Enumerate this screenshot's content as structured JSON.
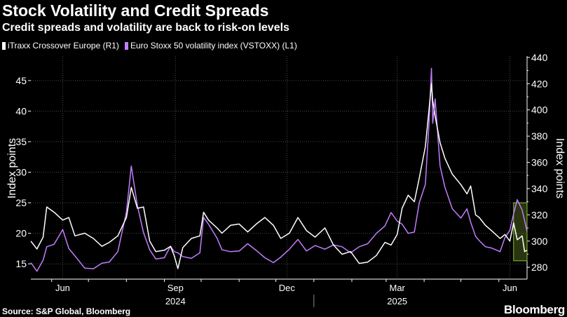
{
  "header": {
    "title": "Stock Volatility and Credit Spreads",
    "subtitle": "Credit spreads and volatility are back to risk-on levels"
  },
  "footer": {
    "source": "Source: S&P Global, Bloomberg",
    "brand": "Bloomberg"
  },
  "colors": {
    "itraxx": "#ffffff",
    "vstoxx": "#c17dfb",
    "highlight": "#8fbf3a"
  },
  "chart_data": {
    "type": "line",
    "legend_position": "top-left",
    "grid": true,
    "x_ticks": [
      "Jun",
      "Sep",
      "Dec",
      "Mar",
      "Jun"
    ],
    "x_years": [
      "2024",
      "2025"
    ],
    "ylabel_left": "Index points",
    "ylabel_right": "Index points",
    "ylim_left": [
      12.5,
      49
    ],
    "ylim_right": [
      271,
      441
    ],
    "yticks_left": [
      15,
      20,
      25,
      30,
      35,
      40,
      45
    ],
    "yticks_right": [
      280,
      300,
      320,
      340,
      360,
      380,
      400,
      420,
      440
    ],
    "x_range": [
      "2024-05-15",
      "2025-06-24"
    ],
    "highlight_range": [
      "2025-06-13",
      "2025-06-24"
    ],
    "series": [
      {
        "name": "iTraxx Crossover Europe (R1)",
        "axis": "right",
        "points": [
          [
            "2024-05-15",
            300
          ],
          [
            "2024-05-20",
            294
          ],
          [
            "2024-05-25",
            303
          ],
          [
            "2024-05-28",
            326
          ],
          [
            "2024-06-03",
            322
          ],
          [
            "2024-06-10",
            316
          ],
          [
            "2024-06-15",
            318
          ],
          [
            "2024-06-20",
            304
          ],
          [
            "2024-06-28",
            306
          ],
          [
            "2024-07-05",
            302
          ],
          [
            "2024-07-12",
            296
          ],
          [
            "2024-07-18",
            299
          ],
          [
            "2024-07-25",
            304
          ],
          [
            "2024-08-01",
            318
          ],
          [
            "2024-08-05",
            341
          ],
          [
            "2024-08-10",
            325
          ],
          [
            "2024-08-15",
            326
          ],
          [
            "2024-08-20",
            300
          ],
          [
            "2024-08-25",
            292
          ],
          [
            "2024-09-01",
            293
          ],
          [
            "2024-09-06",
            296
          ],
          [
            "2024-09-09",
            289
          ],
          [
            "2024-09-12",
            279
          ],
          [
            "2024-09-16",
            295
          ],
          [
            "2024-09-23",
            302
          ],
          [
            "2024-09-30",
            304
          ],
          [
            "2024-10-03",
            322
          ],
          [
            "2024-10-07",
            316
          ],
          [
            "2024-10-14",
            310
          ],
          [
            "2024-10-18",
            306
          ],
          [
            "2024-10-25",
            312
          ],
          [
            "2024-11-01",
            313
          ],
          [
            "2024-11-08",
            307
          ],
          [
            "2024-11-15",
            313
          ],
          [
            "2024-11-22",
            318
          ],
          [
            "2024-11-29",
            312
          ],
          [
            "2024-12-05",
            302
          ],
          [
            "2024-12-12",
            306
          ],
          [
            "2024-12-19",
            318
          ],
          [
            "2024-12-26",
            308
          ],
          [
            "2025-01-02",
            303
          ],
          [
            "2025-01-10",
            310
          ],
          [
            "2025-01-17",
            297
          ],
          [
            "2025-01-24",
            290
          ],
          [
            "2025-01-31",
            292
          ],
          [
            "2025-02-07",
            283
          ],
          [
            "2025-02-14",
            284
          ],
          [
            "2025-02-21",
            289
          ],
          [
            "2025-02-28",
            299
          ],
          [
            "2025-03-05",
            297
          ],
          [
            "2025-03-10",
            305
          ],
          [
            "2025-03-14",
            325
          ],
          [
            "2025-03-19",
            335
          ],
          [
            "2025-03-24",
            330
          ],
          [
            "2025-03-28",
            348
          ],
          [
            "2025-04-02",
            372
          ],
          [
            "2025-04-05",
            400
          ],
          [
            "2025-04-07",
            420
          ],
          [
            "2025-04-08",
            407
          ],
          [
            "2025-04-10",
            395
          ],
          [
            "2025-04-14",
            375
          ],
          [
            "2025-04-18",
            363
          ],
          [
            "2025-04-24",
            351
          ],
          [
            "2025-05-01",
            343
          ],
          [
            "2025-05-06",
            336
          ],
          [
            "2025-05-09",
            342
          ],
          [
            "2025-05-13",
            320
          ],
          [
            "2025-05-16",
            318
          ],
          [
            "2025-05-21",
            312
          ],
          [
            "2025-05-26",
            308
          ],
          [
            "2025-06-02",
            302
          ],
          [
            "2025-06-06",
            305
          ],
          [
            "2025-06-10",
            300
          ],
          [
            "2025-06-13",
            314
          ],
          [
            "2025-06-16",
            301
          ],
          [
            "2025-06-20",
            304
          ],
          [
            "2025-06-22",
            292
          ],
          [
            "2025-06-24",
            293
          ]
        ]
      },
      {
        "name": "Euro Stoxx 50 volatility index (VSTOXX) (L1)",
        "axis": "left",
        "points": [
          [
            "2024-05-15",
            15.2
          ],
          [
            "2024-05-20",
            13.8
          ],
          [
            "2024-05-25",
            15.6
          ],
          [
            "2024-05-28",
            17.8
          ],
          [
            "2024-06-03",
            18.2
          ],
          [
            "2024-06-10",
            20.6
          ],
          [
            "2024-06-15",
            17.5
          ],
          [
            "2024-06-20",
            16.3
          ],
          [
            "2024-06-28",
            14.3
          ],
          [
            "2024-07-05",
            14.2
          ],
          [
            "2024-07-12",
            15.1
          ],
          [
            "2024-07-18",
            15.3
          ],
          [
            "2024-07-25",
            17.0
          ],
          [
            "2024-08-01",
            23.5
          ],
          [
            "2024-08-05",
            31.0
          ],
          [
            "2024-08-10",
            24.5
          ],
          [
            "2024-08-15",
            20.1
          ],
          [
            "2024-08-20",
            17.3
          ],
          [
            "2024-08-25",
            15.8
          ],
          [
            "2024-09-01",
            16.0
          ],
          [
            "2024-09-06",
            17.9
          ],
          [
            "2024-09-09",
            17.0
          ],
          [
            "2024-09-12",
            16.8
          ],
          [
            "2024-09-16",
            16.2
          ],
          [
            "2024-09-23",
            15.9
          ],
          [
            "2024-09-30",
            16.8
          ],
          [
            "2024-10-03",
            22.6
          ],
          [
            "2024-10-07",
            21.5
          ],
          [
            "2024-10-14",
            19.2
          ],
          [
            "2024-10-18",
            17.3
          ],
          [
            "2024-10-25",
            17.0
          ],
          [
            "2024-11-01",
            17.1
          ],
          [
            "2024-11-08",
            18.3
          ],
          [
            "2024-11-15",
            17.2
          ],
          [
            "2024-11-22",
            16.0
          ],
          [
            "2024-11-29",
            15.2
          ],
          [
            "2024-12-05",
            16.1
          ],
          [
            "2024-12-12",
            17.4
          ],
          [
            "2024-12-19",
            19.0
          ],
          [
            "2024-12-26",
            17.1
          ],
          [
            "2025-01-02",
            18.0
          ],
          [
            "2025-01-10",
            17.4
          ],
          [
            "2025-01-17",
            18.1
          ],
          [
            "2025-01-24",
            17.8
          ],
          [
            "2025-01-31",
            16.8
          ],
          [
            "2025-02-07",
            17.8
          ],
          [
            "2025-02-14",
            18.3
          ],
          [
            "2025-02-21",
            20.0
          ],
          [
            "2025-02-28",
            21.2
          ],
          [
            "2025-03-05",
            23.4
          ],
          [
            "2025-03-10",
            22.0
          ],
          [
            "2025-03-14",
            21.5
          ],
          [
            "2025-03-19",
            20.0
          ],
          [
            "2025-03-24",
            20.2
          ],
          [
            "2025-03-28",
            25.0
          ],
          [
            "2025-04-02",
            28.0
          ],
          [
            "2025-04-05",
            38.0
          ],
          [
            "2025-04-07",
            47.0
          ],
          [
            "2025-04-08",
            38.0
          ],
          [
            "2025-04-10",
            42.0
          ],
          [
            "2025-04-14",
            31.0
          ],
          [
            "2025-04-18",
            27.5
          ],
          [
            "2025-04-24",
            24.0
          ],
          [
            "2025-05-01",
            22.5
          ],
          [
            "2025-05-06",
            24.0
          ],
          [
            "2025-05-09",
            21.8
          ],
          [
            "2025-05-13",
            19.5
          ],
          [
            "2025-05-16",
            18.8
          ],
          [
            "2025-05-21",
            17.8
          ],
          [
            "2025-05-26",
            17.6
          ],
          [
            "2025-06-02",
            17.0
          ],
          [
            "2025-06-06",
            19.3
          ],
          [
            "2025-06-10",
            20.5
          ],
          [
            "2025-06-13",
            23.2
          ],
          [
            "2025-06-16",
            25.5
          ],
          [
            "2025-06-20",
            23.8
          ],
          [
            "2025-06-22",
            22.1
          ],
          [
            "2025-06-24",
            20.3
          ]
        ]
      }
    ]
  }
}
